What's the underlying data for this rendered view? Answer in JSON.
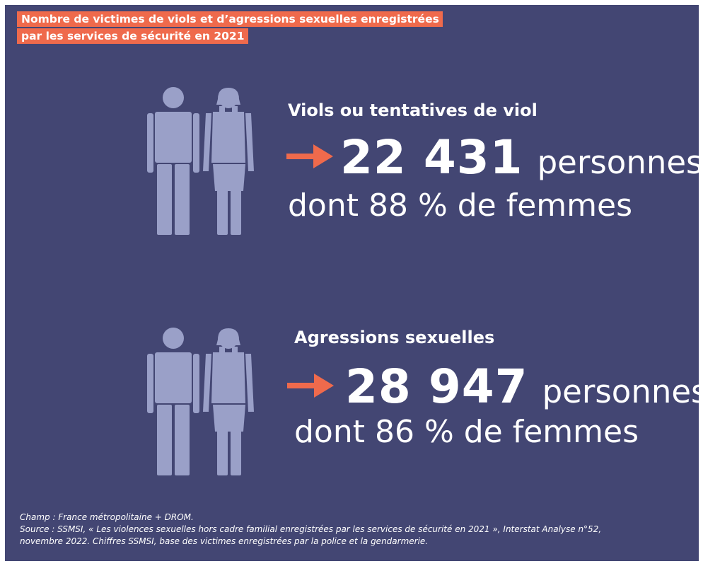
{
  "title": {
    "line1": "Nombre de victimes de viols et d’agressions sexuelles enregistrées",
    "line2": "par les services de sécurité en 2021"
  },
  "sections": [
    {
      "heading": "Viols ou tentatives de viol",
      "value": "22 431",
      "unit": "personnes",
      "subtext": "dont 88 % de femmes"
    },
    {
      "heading": "Agressions sexuelles",
      "value": "28 947",
      "unit": "personnes",
      "subtext": "dont 86 % de femmes"
    }
  ],
  "icons": [
    "man-figure-icon",
    "woman-figure-icon",
    "right-arrow-icon"
  ],
  "colors": {
    "background": "#434673",
    "accent": "#ef6a4c",
    "figure": "#9aa0c8",
    "text": "#ffffff"
  },
  "footnotes": {
    "line1": "Champ : France métropolitaine + DROM.",
    "line2": "Source : SSMSI, « Les violences sexuelles hors cadre familial enregistrées par les services de sécurité en 2021 », Interstat Analyse n°52,",
    "line3": "novembre 2022. Chiffres SSMSI, base des victimes enregistrées par la police et la gendarmerie."
  }
}
